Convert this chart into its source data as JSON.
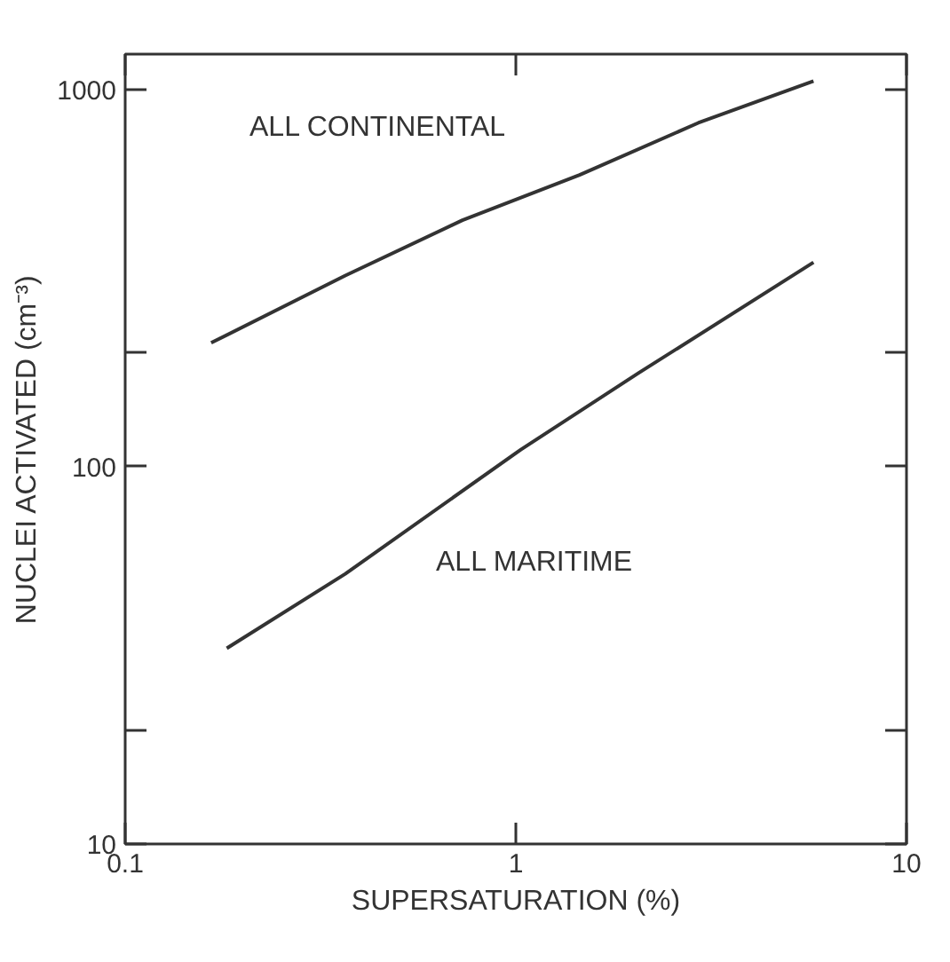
{
  "chart_data": {
    "type": "line",
    "xlabel": "SUPERSATURATION (%)",
    "ylabel": "NUCLEI ACTIVATED (cm⁻³)",
    "log": "xy",
    "xlim": [
      0.1,
      10
    ],
    "ylim": [
      10,
      1240
    ],
    "xticks": [
      {
        "value": 0.1,
        "label": "0.1"
      },
      1,
      10
    ],
    "yticks": [
      10,
      {
        "value": 20,
        "label": null
      },
      100,
      {
        "value": 200,
        "label": null
      },
      1000
    ],
    "grid": false,
    "series": [
      {
        "color": "#333333",
        "x": [
          0.166,
          0.366,
          0.73,
          1.456,
          2.93,
          5.78
        ],
        "values": [
          213,
          321,
          450,
          593,
          815,
          1052
        ]
      },
      {
        "color": "#333333",
        "x": [
          0.182,
          0.366,
          1.03,
          2.06,
          5.78
        ],
        "values": [
          33,
          52,
          111,
          177,
          348
        ]
      }
    ],
    "annotations": [
      "ALL CONTINENTAL",
      "ALL MARITIME"
    ]
  }
}
